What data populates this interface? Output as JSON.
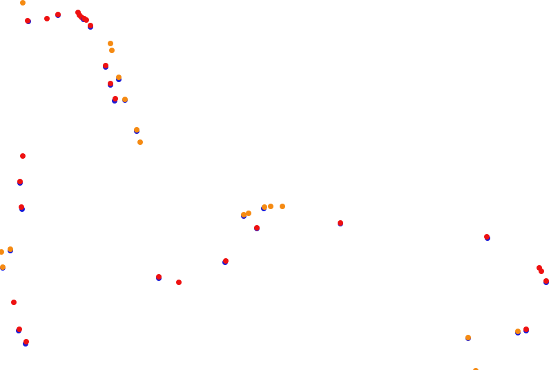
{
  "colors": {
    "background": "#ffffff",
    "series_blue": "#1a1ad6",
    "series_red": "#ee1111",
    "series_orange": "#f58a12"
  },
  "marker_styles": {
    "blue": {
      "color": "#1a1ad6"
    },
    "red": {
      "color": "#ee1111"
    },
    "orange": {
      "color": "#f58a12"
    }
  }
}
